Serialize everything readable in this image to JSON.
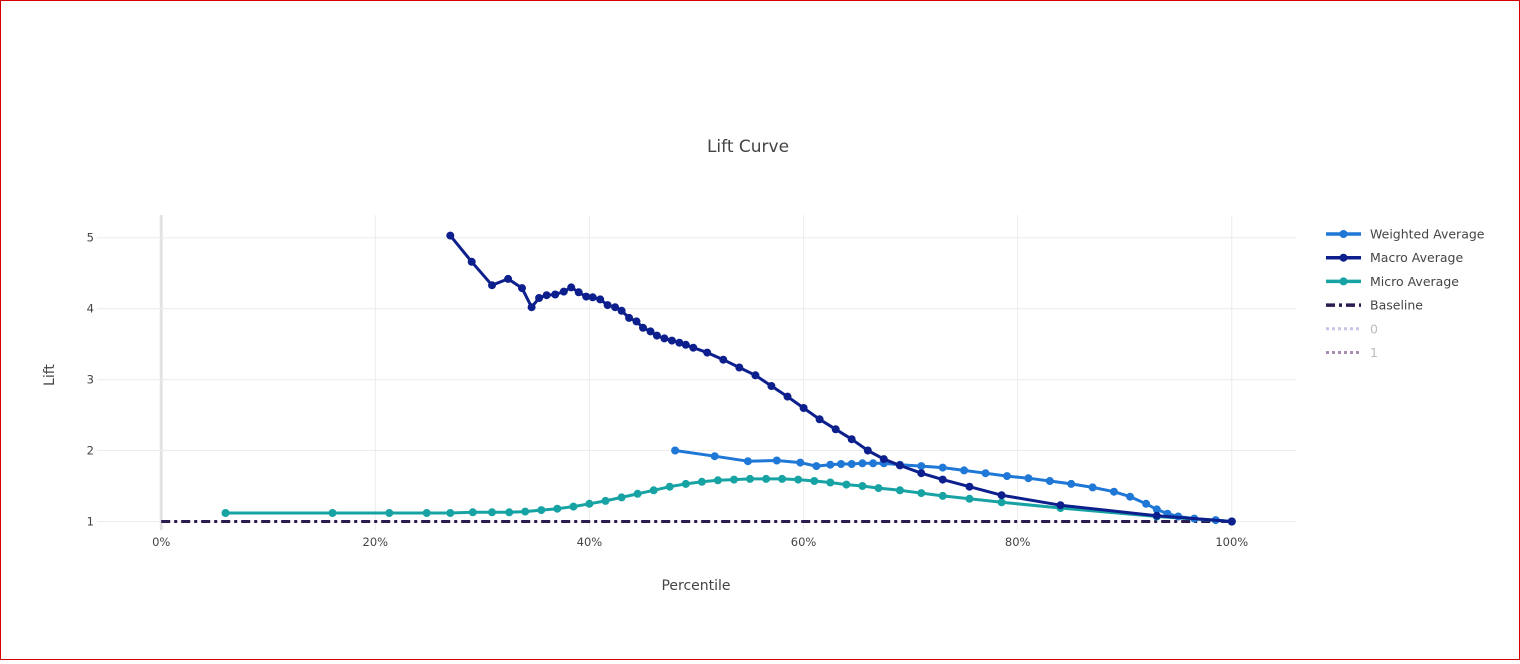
{
  "chart_data": {
    "type": "line",
    "title": "Lift Curve",
    "xlabel": "Percentile",
    "ylabel": "Lift",
    "xlim": [
      -0.06,
      1.06
    ],
    "ylim": [
      0.88,
      5.32
    ],
    "x_ticks": [
      0,
      0.2,
      0.4,
      0.6,
      0.8,
      1.0
    ],
    "x_tick_labels": [
      "0%",
      "20%",
      "40%",
      "60%",
      "80%",
      "100%"
    ],
    "y_ticks": [
      1,
      2,
      3,
      4,
      5
    ],
    "y_tick_labels": [
      "1",
      "2",
      "3",
      "4",
      "5"
    ],
    "grid": true,
    "legend_position": "right",
    "series": [
      {
        "name": "Weighted Average",
        "color": "#1f77d6",
        "style": "solid-markers",
        "x": [
          0.48,
          0.517,
          0.548,
          0.575,
          0.597,
          0.612,
          0.625,
          0.635,
          0.645,
          0.655,
          0.665,
          0.675,
          0.69,
          0.71,
          0.73,
          0.75,
          0.77,
          0.79,
          0.81,
          0.83,
          0.85,
          0.87,
          0.89,
          0.905,
          0.92,
          0.93,
          0.94,
          0.95,
          0.965,
          0.985,
          1.0
        ],
        "y": [
          2.0,
          1.92,
          1.85,
          1.86,
          1.83,
          1.78,
          1.8,
          1.81,
          1.81,
          1.82,
          1.82,
          1.82,
          1.8,
          1.78,
          1.76,
          1.72,
          1.68,
          1.64,
          1.61,
          1.57,
          1.53,
          1.48,
          1.42,
          1.35,
          1.25,
          1.17,
          1.11,
          1.07,
          1.04,
          1.02,
          1.0
        ]
      },
      {
        "name": "Macro Average",
        "color": "#0d1f8c",
        "style": "solid-markers",
        "x": [
          0.27,
          0.29,
          0.309,
          0.324,
          0.337,
          0.346,
          0.353,
          0.36,
          0.368,
          0.376,
          0.383,
          0.39,
          0.397,
          0.403,
          0.41,
          0.417,
          0.424,
          0.43,
          0.437,
          0.444,
          0.45,
          0.457,
          0.463,
          0.47,
          0.477,
          0.484,
          0.49,
          0.497,
          0.51,
          0.525,
          0.54,
          0.555,
          0.57,
          0.585,
          0.6,
          0.615,
          0.63,
          0.645,
          0.66,
          0.675,
          0.69,
          0.71,
          0.73,
          0.755,
          0.785,
          0.84,
          0.93,
          1.0
        ],
        "y": [
          5.03,
          4.66,
          4.33,
          4.42,
          4.29,
          4.02,
          4.15,
          4.19,
          4.2,
          4.24,
          4.3,
          4.23,
          4.17,
          4.16,
          4.13,
          4.05,
          4.02,
          3.97,
          3.87,
          3.82,
          3.73,
          3.68,
          3.62,
          3.58,
          3.55,
          3.52,
          3.49,
          3.45,
          3.38,
          3.28,
          3.17,
          3.06,
          2.91,
          2.76,
          2.6,
          2.44,
          2.3,
          2.16,
          2.0,
          1.88,
          1.79,
          1.68,
          1.59,
          1.49,
          1.37,
          1.23,
          1.08,
          1.0
        ]
      },
      {
        "name": "Micro Average",
        "color": "#17a3a3",
        "style": "solid-markers",
        "x": [
          0.06,
          0.16,
          0.213,
          0.248,
          0.27,
          0.291,
          0.309,
          0.325,
          0.34,
          0.355,
          0.37,
          0.385,
          0.4,
          0.415,
          0.43,
          0.445,
          0.46,
          0.475,
          0.49,
          0.505,
          0.52,
          0.535,
          0.55,
          0.565,
          0.58,
          0.595,
          0.61,
          0.625,
          0.64,
          0.655,
          0.67,
          0.69,
          0.71,
          0.73,
          0.755,
          0.785,
          0.84,
          0.93,
          1.0
        ],
        "y": [
          1.12,
          1.12,
          1.12,
          1.12,
          1.12,
          1.13,
          1.13,
          1.13,
          1.14,
          1.16,
          1.18,
          1.21,
          1.25,
          1.29,
          1.34,
          1.39,
          1.44,
          1.49,
          1.53,
          1.56,
          1.58,
          1.59,
          1.6,
          1.6,
          1.6,
          1.59,
          1.57,
          1.55,
          1.52,
          1.5,
          1.47,
          1.44,
          1.4,
          1.36,
          1.32,
          1.27,
          1.19,
          1.07,
          1.0
        ]
      },
      {
        "name": "Baseline",
        "color": "#2b1b4f",
        "style": "dashdot",
        "x": [
          0,
          1.0
        ],
        "y": [
          1.0,
          1.0
        ]
      },
      {
        "name": "0",
        "color": "#c7c3e6",
        "style": "dotted-legendonly",
        "x": [],
        "y": []
      },
      {
        "name": "1",
        "color": "#a98db3",
        "style": "dotted-legendonly",
        "x": [],
        "y": []
      }
    ]
  }
}
